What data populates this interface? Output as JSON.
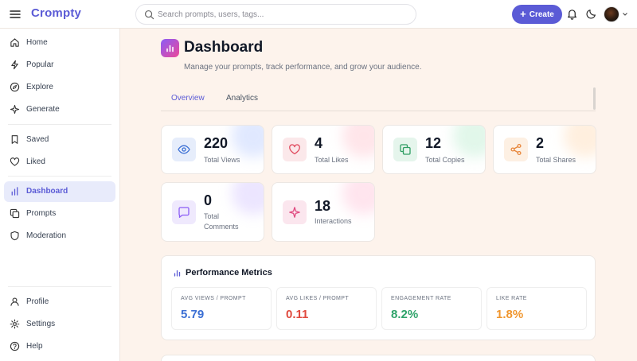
{
  "header": {
    "logo": "Crompty",
    "search_placeholder": "Search prompts, users, tags...",
    "create_label": "Create"
  },
  "sidebar": {
    "items": [
      {
        "label": "Home",
        "icon": "home-icon"
      },
      {
        "label": "Popular",
        "icon": "lightning-icon"
      },
      {
        "label": "Explore",
        "icon": "compass-icon"
      },
      {
        "label": "Generate",
        "icon": "sparkle-icon"
      },
      {
        "label": "Saved",
        "icon": "bookmark-icon"
      },
      {
        "label": "Liked",
        "icon": "heart-icon"
      },
      {
        "label": "Dashboard",
        "icon": "bar-chart-icon",
        "active": true
      },
      {
        "label": "Prompts",
        "icon": "copy-icon"
      },
      {
        "label": "Moderation",
        "icon": "shield-icon"
      },
      {
        "label": "Profile",
        "icon": "user-icon"
      },
      {
        "label": "Settings",
        "icon": "gear-icon"
      },
      {
        "label": "Help",
        "icon": "help-icon"
      }
    ]
  },
  "page": {
    "title": "Dashboard",
    "subtitle": "Manage your prompts, track performance, and grow your audience."
  },
  "tabs": [
    {
      "label": "Overview",
      "active": true
    },
    {
      "label": "Analytics",
      "active": false
    }
  ],
  "stats": [
    {
      "value": "220",
      "label": "Total Views",
      "icon": "eye-icon",
      "color": "#3b6fd4"
    },
    {
      "value": "4",
      "label": "Total Likes",
      "icon": "heart-icon",
      "color": "#e04a5e"
    },
    {
      "value": "12",
      "label": "Total Copies",
      "icon": "copy-icon",
      "color": "#2f9e63"
    },
    {
      "value": "2",
      "label": "Total Shares",
      "icon": "share-icon",
      "color": "#e8863a"
    },
    {
      "value": "0",
      "label": "Total Comments",
      "icon": "comment-icon",
      "color": "#8b5cf6"
    },
    {
      "value": "18",
      "label": "Interactions",
      "icon": "sparkle-icon",
      "color": "#e0497f"
    }
  ],
  "performance": {
    "title": "Performance Metrics",
    "metrics": [
      {
        "label": "AVG VIEWS / PROMPT",
        "value": "5.79",
        "color": "#3b6fd4"
      },
      {
        "label": "AVG LIKES / PROMPT",
        "value": "0.11",
        "color": "#e04a3e"
      },
      {
        "label": "ENGAGEMENT RATE",
        "value": "8.2%",
        "color": "#2fa36a"
      },
      {
        "label": "LIKE RATE",
        "value": "1.8%",
        "color": "#f0962e"
      }
    ]
  },
  "colors": {
    "accent": "#5b5bd6",
    "page_bg": "#fdf3ec"
  }
}
